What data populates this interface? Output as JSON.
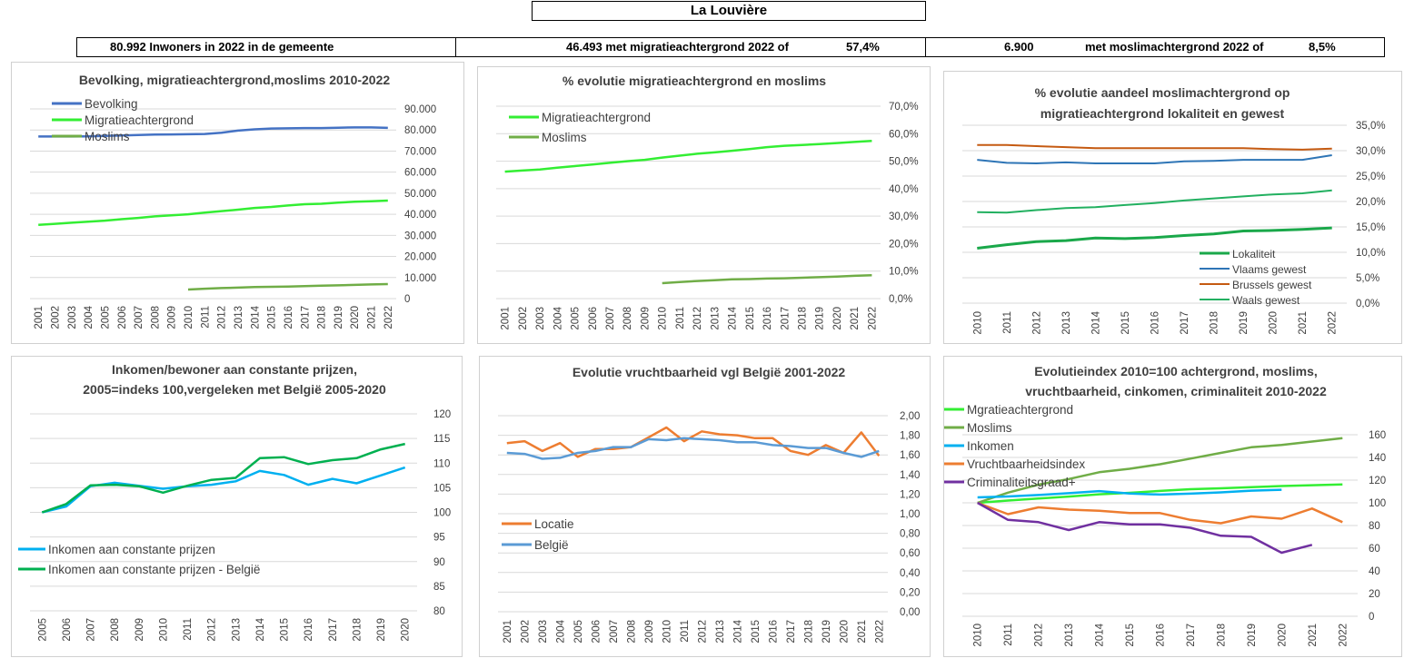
{
  "header": {
    "title": "La Louvière",
    "stat1": "80.992 Inwoners in 2022 in de gemeente",
    "stat2_text": "46.493 met migratieachtergrond 2022 of",
    "stat2_pct": "57,4%",
    "stat3_num": "6.900",
    "stat3_text": "met moslimachtergrond 2022 of",
    "stat3_pct": "8,5%"
  },
  "colors": {
    "bevolking": "#4472c4",
    "migratie": "#33ee33",
    "moslims": "#70ad47",
    "lokaliteit": "#1aa84a",
    "vlaams": "#2e75b6",
    "brussels": "#c55a11",
    "waals": "#22b060",
    "inkomen": "#00b0f0",
    "inkomen_belgie": "#00b050",
    "locatie": "#ed7d31",
    "belgie": "#5b9bd5",
    "vruchtbaarheid": "#ed7d31",
    "criminaliteit": "#7030a0",
    "grid": "#d9d9d9"
  },
  "chart_data": [
    {
      "id": "c1",
      "type": "line",
      "title": "Bevolking, migratieachtergrond,moslims 2010-2022",
      "categories": [
        "2001",
        "2002",
        "2003",
        "2004",
        "2005",
        "2006",
        "2007",
        "2008",
        "2009",
        "2010",
        "2011",
        "2012",
        "2013",
        "2014",
        "2015",
        "2016",
        "2017",
        "2018",
        "2019",
        "2020",
        "2021",
        "2022"
      ],
      "yticks": [
        "0",
        "10.000",
        "20.000",
        "30.000",
        "40.000",
        "50.000",
        "60.000",
        "70.000",
        "80.000",
        "90.000"
      ],
      "ylim": [
        0,
        90000
      ],
      "series": [
        {
          "name": "Bevolking",
          "color_key": "bevolking",
          "values": [
            76900,
            76900,
            76900,
            77000,
            77200,
            77400,
            77600,
            77800,
            77900,
            78000,
            78100,
            78700,
            79700,
            80300,
            80700,
            80800,
            80900,
            80900,
            81100,
            81200,
            81200,
            80992
          ]
        },
        {
          "name": "Migratieachtergrond",
          "color_key": "migratie",
          "values": [
            35000,
            35500,
            36000,
            36500,
            37000,
            37700,
            38300,
            39000,
            39500,
            40000,
            40800,
            41500,
            42200,
            43000,
            43500,
            44200,
            44800,
            45000,
            45500,
            46000,
            46200,
            46493
          ]
        },
        {
          "name": "Moslims",
          "color_key": "moslims",
          "values": [
            null,
            null,
            null,
            null,
            null,
            null,
            null,
            null,
            null,
            4300,
            4700,
            5000,
            5200,
            5500,
            5600,
            5700,
            5900,
            6100,
            6300,
            6500,
            6700,
            6900
          ]
        }
      ]
    },
    {
      "id": "c2",
      "type": "line",
      "title": "% evolutie migratieachtergrond en moslims",
      "categories": [
        "2001",
        "2002",
        "2003",
        "2004",
        "2005",
        "2006",
        "2007",
        "2008",
        "2009",
        "2010",
        "2011",
        "2012",
        "2013",
        "2014",
        "2015",
        "2016",
        "2017",
        "2018",
        "2019",
        "2020",
        "2021",
        "2022"
      ],
      "yticks": [
        "0,0%",
        "10,0%",
        "20,0%",
        "30,0%",
        "40,0%",
        "50,0%",
        "60,0%",
        "70,0%"
      ],
      "ylim": [
        0,
        70
      ],
      "series": [
        {
          "name": "Migratieachtergrond",
          "color_key": "migratie",
          "values": [
            46.2,
            46.6,
            47.0,
            47.6,
            48.2,
            48.8,
            49.4,
            50.0,
            50.5,
            51.3,
            52.0,
            52.7,
            53.2,
            53.8,
            54.4,
            55.1,
            55.6,
            55.9,
            56.2,
            56.6,
            57.0,
            57.4
          ]
        },
        {
          "name": "Moslims",
          "color_key": "moslims",
          "values": [
            null,
            null,
            null,
            null,
            null,
            null,
            null,
            null,
            null,
            5.6,
            6.0,
            6.4,
            6.7,
            7.0,
            7.1,
            7.3,
            7.4,
            7.6,
            7.8,
            8.0,
            8.3,
            8.5
          ]
        }
      ]
    },
    {
      "id": "c3",
      "type": "line",
      "title_lines": [
        "% evolutie aandeel moslimachtergrond op",
        "migratieachtergrond lokaliteit en gewest"
      ],
      "categories": [
        "2010",
        "2011",
        "2012",
        "2013",
        "2014",
        "2015",
        "2016",
        "2017",
        "2018",
        "2019",
        "2020",
        "2021",
        "2022"
      ],
      "yticks": [
        "0,0%",
        "5,0%",
        "10,0%",
        "15,0%",
        "20,0%",
        "25,0%",
        "30,0%",
        "35,0%"
      ],
      "ylim": [
        0,
        35
      ],
      "series": [
        {
          "name": "Lokaliteit",
          "color_key": "lokaliteit",
          "width": 3,
          "values": [
            10.8,
            11.5,
            12.1,
            12.3,
            12.8,
            12.7,
            12.9,
            13.3,
            13.6,
            14.2,
            14.3,
            14.5,
            14.8
          ]
        },
        {
          "name": "Vlaams gewest",
          "color_key": "vlaams",
          "width": 2,
          "values": [
            28.2,
            27.6,
            27.5,
            27.7,
            27.5,
            27.5,
            27.5,
            27.9,
            28.0,
            28.2,
            28.2,
            28.2,
            29.1
          ]
        },
        {
          "name": "Brussels gewest",
          "color_key": "brussels",
          "width": 2,
          "values": [
            31.1,
            31.1,
            30.9,
            30.7,
            30.5,
            30.5,
            30.5,
            30.5,
            30.5,
            30.5,
            30.3,
            30.2,
            30.4
          ]
        },
        {
          "name": "Waals gewest",
          "color_key": "waals",
          "width": 2,
          "values": [
            17.9,
            17.8,
            18.3,
            18.7,
            18.9,
            19.3,
            19.7,
            20.2,
            20.6,
            21.0,
            21.4,
            21.6,
            22.2
          ]
        }
      ]
    },
    {
      "id": "c4",
      "type": "line",
      "title_lines": [
        "Inkomen/bewoner aan constante prijzen,",
        "2005=indeks 100,vergeleken met België 2005-2020"
      ],
      "categories": [
        "2005",
        "2006",
        "2007",
        "2008",
        "2009",
        "2010",
        "2011",
        "2012",
        "2013",
        "2014",
        "2015",
        "2016",
        "2017",
        "2018",
        "2019",
        "2020"
      ],
      "yticks": [
        "80",
        "85",
        "90",
        "95",
        "100",
        "105",
        "110",
        "115",
        "120"
      ],
      "ylim": [
        80,
        120
      ],
      "series": [
        {
          "name": "Inkomen aan constante prijzen",
          "color_key": "inkomen",
          "values": [
            100,
            101.2,
            105.3,
            106.0,
            105.4,
            104.8,
            105.3,
            105.6,
            106.3,
            108.4,
            107.6,
            105.6,
            106.8,
            105.9,
            107.5,
            109.1
          ]
        },
        {
          "name": "Inkomen aan constante prijzen - België",
          "color_key": "inkomen_belgie",
          "values": [
            100,
            101.7,
            105.5,
            105.6,
            105.3,
            104.0,
            105.4,
            106.6,
            107.0,
            111.0,
            111.2,
            109.8,
            110.6,
            111.0,
            112.8,
            113.9
          ]
        }
      ]
    },
    {
      "id": "c5",
      "type": "line",
      "title": "Evolutie vruchtbaarheid vgl België 2001-2022",
      "categories": [
        "2001",
        "2002",
        "2003",
        "2004",
        "2005",
        "2006",
        "2007",
        "2008",
        "2009",
        "2010",
        "2011",
        "2012",
        "2013",
        "2014",
        "2015",
        "2016",
        "2017",
        "2018",
        "2019",
        "2020",
        "2021",
        "2022"
      ],
      "yticks": [
        "0,00",
        "0,20",
        "0,40",
        "0,60",
        "0,80",
        "1,00",
        "1,20",
        "1,40",
        "1,60",
        "1,80",
        "2,00"
      ],
      "ylim": [
        0,
        2
      ],
      "series": [
        {
          "name": "Locatie",
          "color_key": "locatie",
          "values": [
            1.72,
            1.74,
            1.64,
            1.72,
            1.58,
            1.66,
            1.66,
            1.68,
            1.78,
            1.88,
            1.74,
            1.84,
            1.81,
            1.8,
            1.77,
            1.77,
            1.64,
            1.6,
            1.7,
            1.62,
            1.83,
            1.59
          ]
        },
        {
          "name": "België",
          "color_key": "belgie",
          "values": [
            1.62,
            1.61,
            1.56,
            1.57,
            1.62,
            1.64,
            1.68,
            1.68,
            1.76,
            1.75,
            1.77,
            1.76,
            1.75,
            1.73,
            1.73,
            1.7,
            1.69,
            1.67,
            1.67,
            1.62,
            1.58,
            1.64
          ]
        }
      ]
    },
    {
      "id": "c6",
      "type": "line",
      "title_lines": [
        "Evolutieindex 2010=100 achtergrond, moslims,",
        "vruchtbaarheid, cinkomen, criminaliteit  2010-2022"
      ],
      "categories": [
        "2010",
        "2011",
        "2012",
        "2013",
        "2014",
        "2015",
        "2016",
        "2017",
        "2018",
        "2019",
        "2020",
        "2021",
        "2022"
      ],
      "yticks": [
        "0",
        "20",
        "40",
        "60",
        "80",
        "100",
        "120",
        "140",
        "160"
      ],
      "ylim": [
        0,
        160
      ],
      "series": [
        {
          "name": "Mgratieachtergrond",
          "color_key": "migratie",
          "values": [
            100,
            102,
            103.8,
            105.5,
            107.5,
            108.8,
            110.5,
            112,
            112.8,
            113.8,
            114.8,
            115.5,
            116.2
          ]
        },
        {
          "name": "Moslims",
          "color_key": "moslims",
          "values": [
            100,
            109,
            116,
            121,
            127,
            130,
            134,
            139,
            144,
            149,
            151,
            154,
            157
          ]
        },
        {
          "name": "Inkomen",
          "color_key": "inkomen",
          "values": [
            104.8,
            105.6,
            106.9,
            108.5,
            110.3,
            108.2,
            107.3,
            108.1,
            109.2,
            110.7,
            111.5,
            null,
            null
          ]
        },
        {
          "name": "Vruchtbaarheidsindex",
          "color_key": "vruchtbaarheid",
          "values": [
            100,
            90,
            96,
            94,
            93,
            91,
            91,
            85,
            82,
            88,
            86,
            95,
            83
          ]
        },
        {
          "name": "Criminaliteitsgraad+",
          "color_key": "criminaliteit",
          "values": [
            100,
            85,
            83,
            76,
            83,
            81,
            81,
            78,
            71,
            70,
            56,
            63,
            null
          ]
        }
      ]
    }
  ]
}
